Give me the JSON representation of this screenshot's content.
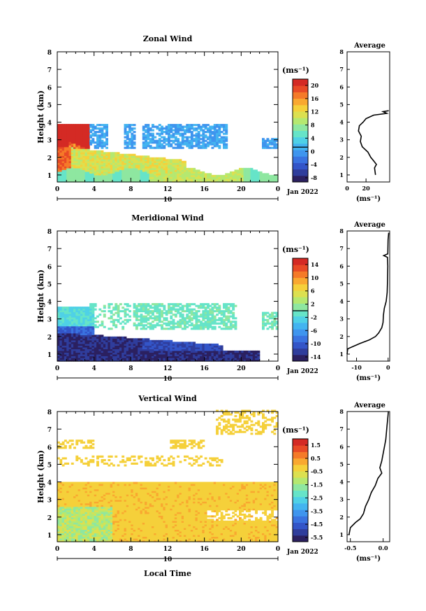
{
  "chart_data": [
    {
      "type": "heatmap",
      "title": "Zonal Wind",
      "ylabel": "Height (km)",
      "xlim": [
        0,
        24
      ],
      "ylim": [
        0.6,
        8
      ],
      "x_ticks": [
        "0",
        "4",
        "8",
        "12",
        "16",
        "20",
        "0"
      ],
      "y_ticks": [
        "1",
        "2",
        "3",
        "4",
        "5",
        "6",
        "7",
        "8"
      ],
      "date_label": "10",
      "month_label": "Jan 2022",
      "colorbar": {
        "unit": "(ms⁻¹)",
        "ticks": [
          "20",
          "16",
          "12",
          "8",
          "4",
          "0",
          "-4",
          "-8"
        ],
        "range": [
          -10,
          22
        ]
      },
      "average": {
        "title": "Average",
        "xlabel": "(ms⁻¹)",
        "xlim": [
          0,
          45
        ],
        "x_ticks": [
          "0",
          "20"
        ],
        "profile": [
          [
            1.0,
            30
          ],
          [
            1.4,
            29
          ],
          [
            1.6,
            31
          ],
          [
            1.8,
            28
          ],
          [
            2.0,
            25
          ],
          [
            2.3,
            22
          ],
          [
            2.6,
            16
          ],
          [
            2.9,
            14
          ],
          [
            3.2,
            15
          ],
          [
            3.5,
            12
          ],
          [
            3.8,
            13
          ],
          [
            4.0,
            17
          ],
          [
            4.2,
            20
          ],
          [
            4.4,
            28
          ],
          [
            4.5,
            42
          ],
          [
            4.6,
            38
          ],
          [
            4.65,
            44
          ]
        ]
      }
    },
    {
      "type": "heatmap",
      "title": "Meridional Wind",
      "ylabel": "Height (km)",
      "xlim": [
        0,
        24
      ],
      "ylim": [
        0.6,
        8
      ],
      "x_ticks": [
        "0",
        "4",
        "8",
        "12",
        "16",
        "20",
        "0"
      ],
      "y_ticks": [
        "1",
        "2",
        "3",
        "4",
        "5",
        "6",
        "7",
        "8"
      ],
      "date_label": "10",
      "month_label": "Jan 2022",
      "colorbar": {
        "unit": "(ms⁻¹)",
        "ticks": [
          "14",
          "10",
          "6",
          "2",
          "-2",
          "-6",
          "-10",
          "-14"
        ],
        "range": [
          -16,
          16
        ]
      },
      "average": {
        "title": "Average",
        "xlabel": "(ms⁻¹)",
        "xlim": [
          -13,
          0.5
        ],
        "x_ticks": [
          "-10",
          "0"
        ],
        "profile": [
          [
            1.0,
            -13
          ],
          [
            1.3,
            -12.8
          ],
          [
            1.6,
            -9
          ],
          [
            1.8,
            -6
          ],
          [
            2.0,
            -4
          ],
          [
            2.2,
            -3
          ],
          [
            2.5,
            -2
          ],
          [
            2.8,
            -1.6
          ],
          [
            3.2,
            -1.5
          ],
          [
            3.6,
            -1.2
          ],
          [
            4.0,
            -0.6
          ],
          [
            4.5,
            -0.3
          ],
          [
            5.0,
            -0.2
          ],
          [
            6.0,
            -0.1
          ],
          [
            6.5,
            -0.2
          ],
          [
            6.6,
            -1.4
          ],
          [
            6.7,
            -0.1
          ],
          [
            7.5,
            0
          ],
          [
            7.9,
            0.2
          ]
        ]
      }
    },
    {
      "type": "heatmap",
      "title": "Vertical Wind",
      "ylabel": "Height (km)",
      "xlabel": "Local Time",
      "xlim": [
        0,
        24
      ],
      "ylim": [
        0.6,
        8
      ],
      "x_ticks": [
        "0",
        "4",
        "8",
        "12",
        "16",
        "20",
        "0"
      ],
      "y_ticks": [
        "1",
        "2",
        "3",
        "4",
        "5",
        "6",
        "7",
        "8"
      ],
      "date_label": "10",
      "month_label": "Jan 2022",
      "colorbar": {
        "unit": "(ms⁻¹)",
        "ticks": [
          "1.5",
          "0.5",
          "-0.5",
          "-1.5",
          "-2.5",
          "-3.5",
          "-4.5",
          "-5.5"
        ],
        "range": [
          -6,
          2
        ]
      },
      "average": {
        "title": "Average",
        "xlabel": "(ms⁻¹)",
        "xlim": [
          -0.55,
          0.1
        ],
        "x_ticks": [
          "-0.5",
          "0.0"
        ],
        "profile": [
          [
            1.0,
            -0.52
          ],
          [
            1.4,
            -0.5
          ],
          [
            1.7,
            -0.42
          ],
          [
            1.9,
            -0.35
          ],
          [
            2.2,
            -0.3
          ],
          [
            2.6,
            -0.27
          ],
          [
            3.0,
            -0.22
          ],
          [
            3.4,
            -0.18
          ],
          [
            3.8,
            -0.12
          ],
          [
            4.2,
            -0.08
          ],
          [
            4.5,
            -0.02
          ],
          [
            4.8,
            -0.05
          ],
          [
            5.2,
            -0.02
          ],
          [
            5.6,
            0.0
          ],
          [
            6.0,
            0.02
          ],
          [
            6.4,
            0.04
          ],
          [
            6.8,
            0.05
          ],
          [
            7.2,
            0.06
          ],
          [
            7.6,
            0.07
          ],
          [
            8.0,
            0.08
          ]
        ]
      }
    }
  ],
  "colors": {
    "scale": [
      "#2b2060",
      "#2f3d9c",
      "#3355c8",
      "#3a73e0",
      "#3f95ee",
      "#43b4f0",
      "#4fd1e6",
      "#66e4c8",
      "#8ee7a0",
      "#b5e870",
      "#dce050",
      "#f5d03a",
      "#f9a830",
      "#f57a28",
      "#e84a26",
      "#d42a24"
    ]
  }
}
